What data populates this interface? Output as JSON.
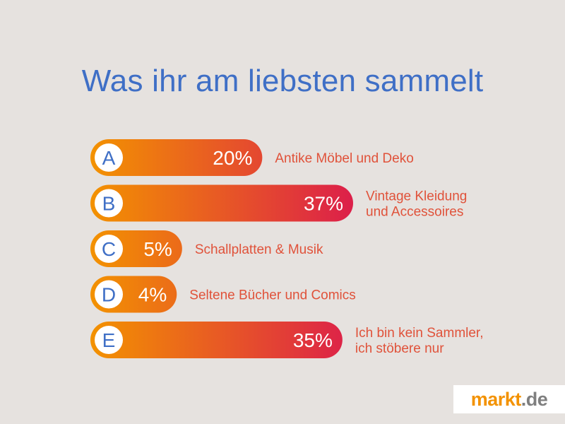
{
  "chart_data": {
    "type": "bar",
    "title": "Was ihr am liebsten sammelt",
    "categories": [
      "A",
      "B",
      "C",
      "D",
      "E"
    ],
    "values": [
      20,
      37,
      5,
      4,
      35
    ],
    "value_labels": [
      "20%",
      "37%",
      "5%",
      "4%",
      "35%"
    ],
    "labels": [
      [
        "Antike Möbel und Deko"
      ],
      [
        "Vintage Kleidung",
        "und Accessoires"
      ],
      [
        "Schallplatten & Musik"
      ],
      [
        "Seltene Bücher und Comics"
      ],
      [
        "Ich bin kein Sammler,",
        "ich stöbere nur"
      ]
    ],
    "xlim": [
      0,
      37
    ],
    "colors": {
      "gradient_start": "#f39200",
      "gradient_end": "#dc1f4a",
      "title": "#3f6fc6",
      "label": "#e0523a",
      "background": "#e6e2df"
    }
  },
  "logo": {
    "main": "markt",
    "sub": ".de"
  }
}
